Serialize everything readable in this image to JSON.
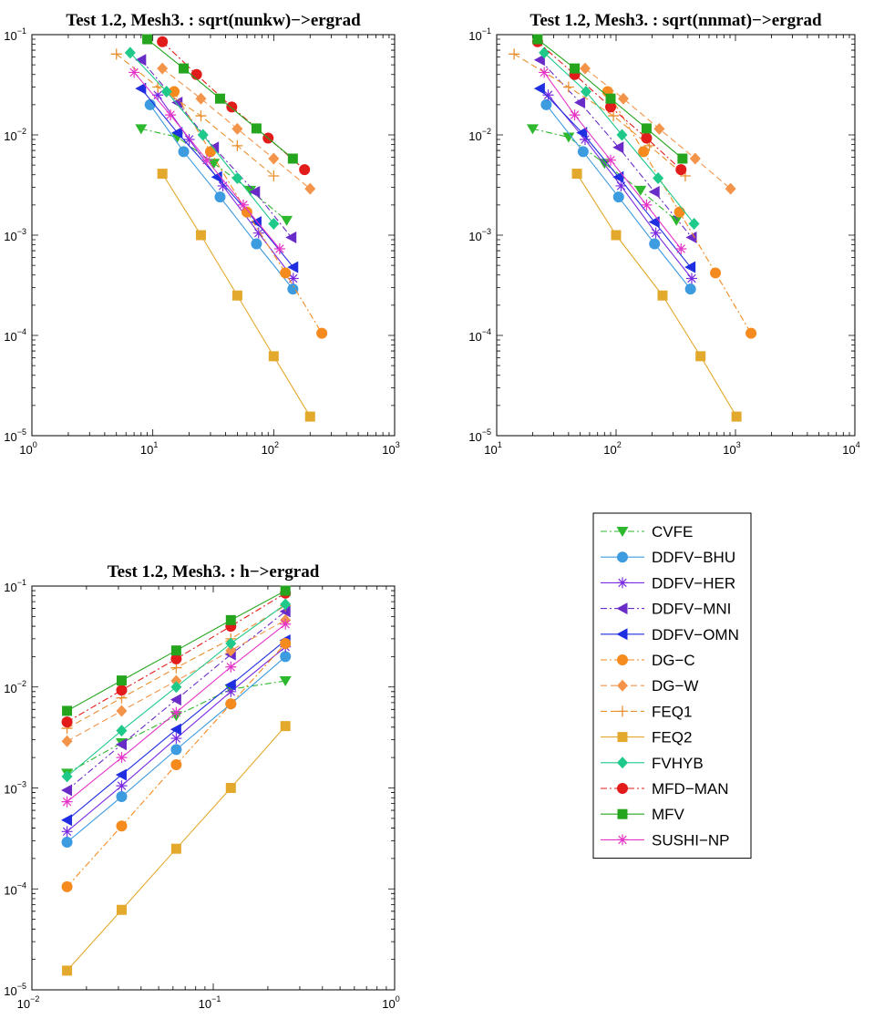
{
  "series_styles": [
    {
      "name": "CVFE",
      "color": "#2eb82e",
      "dash": "7,3,2,3",
      "marker": "triangle-down"
    },
    {
      "name": "DDFV−BHU",
      "color": "#3d9be0",
      "dash": "",
      "marker": "circle"
    },
    {
      "name": "DDFV−HER",
      "color": "#7b2be2",
      "dash": "",
      "marker": "asterisk"
    },
    {
      "name": "DDFV−MNI",
      "color": "#6a2cc8",
      "dash": "7,3,2,3",
      "marker": "triangle-left"
    },
    {
      "name": "DDFV−OMN",
      "color": "#1f2ee0",
      "dash": "",
      "marker": "triangle-left"
    },
    {
      "name": "DG−C",
      "color": "#f58a1f",
      "dash": "7,3,2,3",
      "marker": "circle"
    },
    {
      "name": "DG−W",
      "color": "#f3944a",
      "dash": "7,4",
      "marker": "diamond"
    },
    {
      "name": "FEQ1",
      "color": "#e8902e",
      "dash": "7,4",
      "marker": "plus"
    },
    {
      "name": "FEQ2",
      "color": "#e3a92c",
      "dash": "",
      "marker": "square"
    },
    {
      "name": "FVHYB",
      "color": "#1fc98a",
      "dash": "",
      "marker": "diamond"
    },
    {
      "name": "MFD−MAN",
      "color": "#e21b1b",
      "dash": "7,3,2,3",
      "marker": "circle"
    },
    {
      "name": "MFV",
      "color": "#25a51e",
      "dash": "",
      "marker": "square"
    },
    {
      "name": "SUSHI−NP",
      "color": "#e534c8",
      "dash": "",
      "marker": "asterisk"
    }
  ],
  "chart_data": [
    {
      "type": "line",
      "title": "Test 1.2, Mesh3.  : sqrt(nunkw)−>ergrad",
      "xscale": "log",
      "yscale": "log",
      "xlim": [
        1,
        1000
      ],
      "ylim": [
        1e-05,
        0.1
      ],
      "xticks": [
        {
          "base": "10",
          "exp": "0"
        },
        {
          "base": "10",
          "exp": "1"
        },
        {
          "base": "10",
          "exp": "2"
        },
        {
          "base": "10",
          "exp": "3"
        }
      ],
      "yticks": [
        {
          "base": "10",
          "exp": "−5"
        },
        {
          "base": "10",
          "exp": "−4"
        },
        {
          "base": "10",
          "exp": "−3"
        },
        {
          "base": "10",
          "exp": "−2"
        },
        {
          "base": "10",
          "exp": "−1"
        }
      ],
      "grid": false,
      "series": [
        {
          "name": "CVFE",
          "x": [
            8,
            16,
            32,
            64,
            128
          ],
          "y": [
            0.0115,
            0.0095,
            0.0052,
            0.0028,
            0.0014
          ]
        },
        {
          "name": "DDFV−BHU",
          "x": [
            9.5,
            18,
            36,
            72,
            144
          ],
          "y": [
            0.02,
            0.0068,
            0.0024,
            0.00082,
            0.00029
          ]
        },
        {
          "name": "DDFV−HER",
          "x": [
            11,
            20,
            38,
            75,
            145
          ],
          "y": [
            0.025,
            0.009,
            0.0031,
            0.00105,
            0.00037
          ]
        },
        {
          "name": "DDFV−MNI",
          "x": [
            8,
            16,
            32,
            70,
            140
          ],
          "y": [
            0.056,
            0.021,
            0.0075,
            0.0027,
            0.00095
          ]
        },
        {
          "name": "DDFV−OMN",
          "x": [
            8,
            16,
            34,
            72,
            145
          ],
          "y": [
            0.029,
            0.0105,
            0.0038,
            0.00135,
            0.00048
          ]
        },
        {
          "name": "DG−C",
          "x": [
            15,
            30,
            60,
            125,
            250
          ],
          "y": [
            0.027,
            0.0068,
            0.0017,
            0.00042,
            0.000105
          ]
        },
        {
          "name": "DG−W",
          "x": [
            12,
            25,
            50,
            100,
            200
          ],
          "y": [
            0.046,
            0.023,
            0.0115,
            0.0058,
            0.0029
          ]
        },
        {
          "name": "FEQ1",
          "x": [
            5,
            11,
            25,
            50,
            100
          ],
          "y": [
            0.064,
            0.03,
            0.0155,
            0.0078,
            0.0039
          ]
        },
        {
          "name": "FEQ2",
          "x": [
            12,
            25,
            50,
            100,
            200
          ],
          "y": [
            0.0041,
            0.001,
            0.00025,
            6.2e-05,
            1.55e-05
          ]
        },
        {
          "name": "FVHYB",
          "x": [
            6.5,
            13,
            26,
            50,
            100
          ],
          "y": [
            0.066,
            0.027,
            0.01,
            0.0037,
            0.0013
          ]
        },
        {
          "name": "MFD−MAN",
          "x": [
            12,
            23,
            45,
            90,
            180
          ],
          "y": [
            0.085,
            0.04,
            0.019,
            0.0093,
            0.0045
          ]
        },
        {
          "name": "MFV",
          "x": [
            9,
            18,
            36,
            72,
            144
          ],
          "y": [
            0.09,
            0.046,
            0.023,
            0.0116,
            0.0058
          ]
        },
        {
          "name": "SUSHI−NP",
          "x": [
            7,
            14,
            28,
            56,
            112
          ],
          "y": [
            0.042,
            0.0158,
            0.0056,
            0.002,
            0.00073
          ]
        }
      ]
    },
    {
      "type": "line",
      "title": "Test 1.2, Mesh3.  : sqrt(nnmat)−>ergrad",
      "xscale": "log",
      "yscale": "log",
      "xlim": [
        10,
        10000
      ],
      "ylim": [
        1e-05,
        0.1
      ],
      "xticks": [
        {
          "base": "10",
          "exp": "1"
        },
        {
          "base": "10",
          "exp": "2"
        },
        {
          "base": "10",
          "exp": "3"
        },
        {
          "base": "10",
          "exp": "4"
        }
      ],
      "yticks": [
        {
          "base": "10",
          "exp": "−5"
        },
        {
          "base": "10",
          "exp": "−4"
        },
        {
          "base": "10",
          "exp": "−3"
        },
        {
          "base": "10",
          "exp": "−2"
        },
        {
          "base": "10",
          "exp": "−1"
        }
      ],
      "grid": false,
      "series": [
        {
          "name": "CVFE",
          "x": [
            20,
            40,
            80,
            160,
            320
          ],
          "y": [
            0.0115,
            0.0095,
            0.0052,
            0.0028,
            0.0014
          ]
        },
        {
          "name": "DDFV−BHU",
          "x": [
            26,
            53,
            105,
            210,
            420
          ],
          "y": [
            0.02,
            0.0068,
            0.0024,
            0.00082,
            0.00029
          ]
        },
        {
          "name": "DDFV−HER",
          "x": [
            27,
            55,
            110,
            215,
            430
          ],
          "y": [
            0.025,
            0.009,
            0.0031,
            0.00105,
            0.00037
          ]
        },
        {
          "name": "DDFV−MNI",
          "x": [
            23,
            50,
            105,
            210,
            430
          ],
          "y": [
            0.056,
            0.021,
            0.0075,
            0.0027,
            0.00095
          ]
        },
        {
          "name": "DDFV−OMN",
          "x": [
            23,
            52,
            105,
            210,
            420
          ],
          "y": [
            0.029,
            0.0105,
            0.0038,
            0.00135,
            0.00048
          ]
        },
        {
          "name": "DG−C",
          "x": [
            85,
            170,
            340,
            680,
            1350
          ],
          "y": [
            0.027,
            0.0068,
            0.0017,
            0.00042,
            0.000105
          ]
        },
        {
          "name": "DG−W",
          "x": [
            55,
            115,
            230,
            460,
            910
          ],
          "y": [
            0.046,
            0.023,
            0.0115,
            0.0058,
            0.0029
          ]
        },
        {
          "name": "FEQ1",
          "x": [
            14,
            40,
            95,
            190,
            380
          ],
          "y": [
            0.064,
            0.03,
            0.0155,
            0.0078,
            0.0039
          ]
        },
        {
          "name": "FEQ2",
          "x": [
            47,
            100,
            245,
            510,
            1020
          ],
          "y": [
            0.0041,
            0.001,
            0.00025,
            6.2e-05,
            1.55e-05
          ]
        },
        {
          "name": "FVHYB",
          "x": [
            25,
            56,
            112,
            225,
            450
          ],
          "y": [
            0.066,
            0.027,
            0.01,
            0.0037,
            0.0013
          ]
        },
        {
          "name": "MFD−MAN",
          "x": [
            22,
            45,
            90,
            180,
            350
          ],
          "y": [
            0.085,
            0.04,
            0.019,
            0.0093,
            0.0045
          ]
        },
        {
          "name": "MFV",
          "x": [
            22,
            45,
            90,
            180,
            360
          ],
          "y": [
            0.09,
            0.046,
            0.023,
            0.0116,
            0.0058
          ]
        },
        {
          "name": "SUSHI−NP",
          "x": [
            25,
            45,
            90,
            180,
            350
          ],
          "y": [
            0.042,
            0.0158,
            0.0056,
            0.002,
            0.00073
          ]
        }
      ]
    },
    {
      "type": "line",
      "title": "Test 1.2, Mesh3.  : h−>ergrad",
      "xscale": "log",
      "yscale": "log",
      "xlim": [
        0.01,
        1
      ],
      "ylim": [
        1e-05,
        0.1
      ],
      "xticks": [
        {
          "base": "10",
          "exp": "−2"
        },
        {
          "base": "10",
          "exp": "−1"
        },
        {
          "base": "10",
          "exp": "0"
        }
      ],
      "yticks": [
        {
          "base": "10",
          "exp": "−5"
        },
        {
          "base": "10",
          "exp": "−4"
        },
        {
          "base": "10",
          "exp": "−3"
        },
        {
          "base": "10",
          "exp": "−2"
        },
        {
          "base": "10",
          "exp": "−1"
        }
      ],
      "grid": false,
      "series": [
        {
          "name": "CVFE",
          "x": [
            0.015625,
            0.03125,
            0.0625,
            0.125,
            0.25
          ],
          "y": [
            0.0014,
            0.0028,
            0.0052,
            0.0095,
            0.0115
          ]
        },
        {
          "name": "DDFV−BHU",
          "x": [
            0.015625,
            0.03125,
            0.0625,
            0.125,
            0.25
          ],
          "y": [
            0.00029,
            0.00082,
            0.0024,
            0.0068,
            0.02
          ]
        },
        {
          "name": "DDFV−HER",
          "x": [
            0.015625,
            0.03125,
            0.0625,
            0.125,
            0.25
          ],
          "y": [
            0.00037,
            0.00105,
            0.0031,
            0.009,
            0.025
          ]
        },
        {
          "name": "DDFV−MNI",
          "x": [
            0.015625,
            0.03125,
            0.0625,
            0.125,
            0.25
          ],
          "y": [
            0.00095,
            0.0027,
            0.0075,
            0.021,
            0.056
          ]
        },
        {
          "name": "DDFV−OMN",
          "x": [
            0.015625,
            0.03125,
            0.0625,
            0.125,
            0.25
          ],
          "y": [
            0.00048,
            0.00135,
            0.0038,
            0.0105,
            0.029
          ]
        },
        {
          "name": "DG−C",
          "x": [
            0.015625,
            0.03125,
            0.0625,
            0.125,
            0.25
          ],
          "y": [
            0.000105,
            0.00042,
            0.0017,
            0.0068,
            0.027
          ]
        },
        {
          "name": "DG−W",
          "x": [
            0.015625,
            0.03125,
            0.0625,
            0.125,
            0.25
          ],
          "y": [
            0.0029,
            0.0058,
            0.0115,
            0.023,
            0.046
          ]
        },
        {
          "name": "FEQ1",
          "x": [
            0.015625,
            0.03125,
            0.0625,
            0.125,
            0.25
          ],
          "y": [
            0.0039,
            0.0078,
            0.0155,
            0.03,
            0.064
          ]
        },
        {
          "name": "FEQ2",
          "x": [
            0.015625,
            0.03125,
            0.0625,
            0.125,
            0.25
          ],
          "y": [
            1.55e-05,
            6.2e-05,
            0.00025,
            0.001,
            0.0041
          ]
        },
        {
          "name": "FVHYB",
          "x": [
            0.015625,
            0.03125,
            0.0625,
            0.125,
            0.25
          ],
          "y": [
            0.0013,
            0.0037,
            0.01,
            0.027,
            0.066
          ]
        },
        {
          "name": "MFD−MAN",
          "x": [
            0.015625,
            0.03125,
            0.0625,
            0.125,
            0.25
          ],
          "y": [
            0.0045,
            0.0093,
            0.019,
            0.04,
            0.085
          ]
        },
        {
          "name": "MFV",
          "x": [
            0.015625,
            0.03125,
            0.0625,
            0.125,
            0.25
          ],
          "y": [
            0.0058,
            0.0116,
            0.023,
            0.046,
            0.09
          ]
        },
        {
          "name": "SUSHI−NP",
          "x": [
            0.015625,
            0.03125,
            0.0625,
            0.125,
            0.25
          ],
          "y": [
            0.00073,
            0.002,
            0.0056,
            0.0158,
            0.042
          ]
        }
      ]
    }
  ],
  "legend": {
    "placement": "bottom-right",
    "entries": [
      "CVFE",
      "DDFV−BHU",
      "DDFV−HER",
      "DDFV−MNI",
      "DDFV−OMN",
      "DG−C",
      "DG−W",
      "FEQ1",
      "FEQ2",
      "FVHYB",
      "MFD−MAN",
      "MFV",
      "SUSHI−NP"
    ]
  }
}
